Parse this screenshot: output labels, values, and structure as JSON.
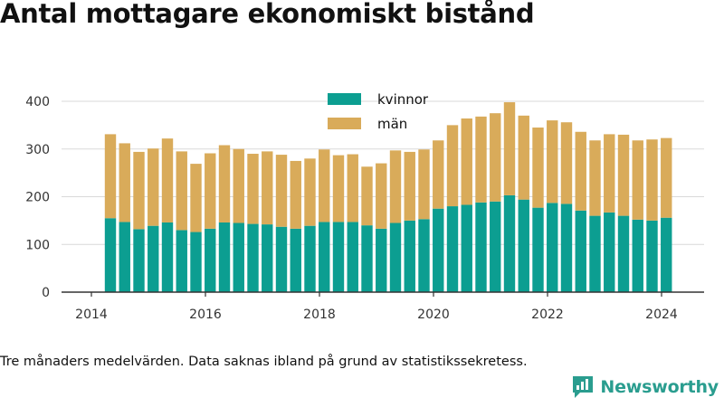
{
  "title": "Antal mottagare ekonomiskt bistånd",
  "footnote": "Tre månaders medelvärden. Data saknas ibland på grund av statistikssekretess.",
  "brand": {
    "name": "Newsworthy",
    "logo_icon": "bar-chart-speech-bubble-icon"
  },
  "colors": {
    "kvinnor": "#0c9e91",
    "man": "#d9ab5a",
    "grid": "#d9d9d9",
    "axis": "#333333",
    "brand": "#2a9d8f"
  },
  "chart_data": {
    "type": "bar",
    "stacked": true,
    "title": "Antal mottagare ekonomiskt bistånd",
    "xlabel": "",
    "ylabel": "",
    "ylim": [
      0,
      400
    ],
    "yticks": [
      0,
      100,
      200,
      300,
      400
    ],
    "xticks": [
      "2014",
      "2016",
      "2018",
      "2020",
      "2022",
      "2024"
    ],
    "legend_position": "top-center",
    "grid": true,
    "x": [
      "2014-05",
      "2014-08",
      "2014-11",
      "2015-02",
      "2015-05",
      "2015-08",
      "2015-11",
      "2016-02",
      "2016-05",
      "2016-08",
      "2016-11",
      "2017-02",
      "2017-05",
      "2017-08",
      "2017-11",
      "2018-02",
      "2018-05",
      "2018-08",
      "2018-11",
      "2019-02",
      "2019-05",
      "2019-08",
      "2019-11",
      "2020-02",
      "2020-05",
      "2020-08",
      "2020-11",
      "2021-02",
      "2021-05",
      "2021-08",
      "2021-11",
      "2022-02",
      "2022-05",
      "2022-08",
      "2022-11",
      "2023-02",
      "2023-05",
      "2023-08",
      "2023-11",
      "2024-02"
    ],
    "series": [
      {
        "name": "kvinnor",
        "values": [
          155,
          147,
          132,
          139,
          146,
          130,
          126,
          133,
          146,
          145,
          143,
          142,
          137,
          133,
          139,
          147,
          147,
          147,
          140,
          133,
          145,
          150,
          153,
          175,
          180,
          183,
          188,
          190,
          203,
          194,
          177,
          187,
          185,
          171,
          160,
          167,
          160,
          152,
          150,
          156
        ]
      },
      {
        "name": "män",
        "values": [
          176,
          165,
          162,
          162,
          176,
          165,
          143,
          158,
          162,
          155,
          147,
          153,
          151,
          142,
          141,
          152,
          140,
          142,
          123,
          137,
          152,
          144,
          146,
          143,
          170,
          181,
          180,
          185,
          195,
          176,
          168,
          173,
          171,
          165,
          158,
          164,
          170,
          166,
          170,
          167
        ]
      }
    ]
  }
}
